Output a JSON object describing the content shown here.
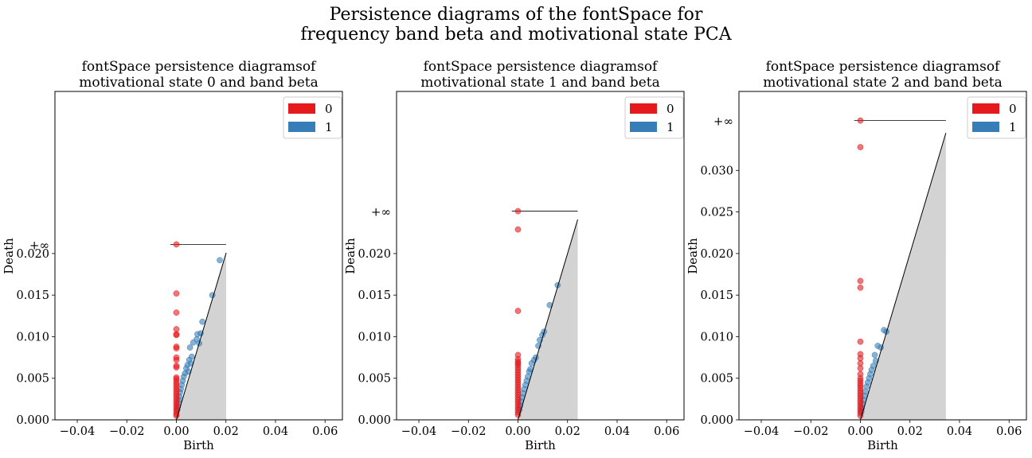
{
  "figure": {
    "suptitle_line1": "Persistence diagrams of the fontSpace for",
    "suptitle_line2": "frequency band beta and motivational state PCA",
    "colors": {
      "h0": "#e41a1c",
      "h1": "#377eb8",
      "fill": "#d3d3d3"
    }
  },
  "chart_data": [
    {
      "type": "scatter",
      "title_line1": "fontSpace persistence diagramsof",
      "title_line2": "motivational state 0 and band beta",
      "xlabel": "Birth",
      "ylabel": "Death",
      "infinity_label": "+∞",
      "infinity_death": 0.0211,
      "xlim": [
        -0.049,
        0.067
      ],
      "ylim": [
        0,
        0.0395
      ],
      "diagonal_max": 0.0201,
      "xticks": [
        -0.04,
        -0.02,
        0.0,
        0.02,
        0.04,
        0.06
      ],
      "xtick_labels": [
        "−0.04",
        "−0.02",
        "0.00",
        "0.02",
        "0.04",
        "0.06"
      ],
      "yticks": [
        0.0,
        0.005,
        0.01,
        0.015,
        0.02
      ],
      "ytick_labels": [
        "0.000",
        "0.005",
        "0.010",
        "0.015",
        "0.020"
      ],
      "legend": [
        "0",
        "1"
      ],
      "legend_position": "upper right",
      "series": [
        {
          "name": "0",
          "points": [
            [
              0,
              0.0211
            ],
            [
              0,
              0.0152
            ],
            [
              0,
              0.0129
            ],
            [
              0,
              0.0109
            ],
            [
              0,
              0.0103
            ],
            [
              0,
              0.0102
            ],
            [
              0,
              0.0088
            ],
            [
              0,
              0.0086
            ],
            [
              0,
              0.0075
            ],
            [
              0,
              0.0072
            ],
            [
              0,
              0.0065
            ],
            [
              0,
              0.0063
            ],
            [
              0,
              0.0051
            ],
            [
              0,
              0.0049
            ],
            [
              0,
              0.0046
            ],
            [
              0,
              0.0043
            ],
            [
              0,
              0.004
            ],
            [
              0,
              0.0037
            ],
            [
              0,
              0.0034
            ],
            [
              0,
              0.0031
            ],
            [
              0,
              0.0028
            ],
            [
              0,
              0.0025
            ],
            [
              0,
              0.0022
            ],
            [
              0,
              0.0019
            ],
            [
              0,
              0.0016
            ],
            [
              0,
              0.0013
            ],
            [
              0,
              0.001
            ],
            [
              0,
              0.0007
            ],
            [
              0,
              0.0005
            ]
          ]
        },
        {
          "name": "1",
          "points": [
            [
              0.0175,
              0.0192
            ],
            [
              0.0145,
              0.015
            ],
            [
              0.0105,
              0.0118
            ],
            [
              0.0085,
              0.0103
            ],
            [
              0.0098,
              0.0104
            ],
            [
              0.0068,
              0.0093
            ],
            [
              0.0082,
              0.0097
            ],
            [
              0.0092,
              0.0092
            ],
            [
              0.0055,
              0.0087
            ],
            [
              0.0062,
              0.0076
            ],
            [
              0.0052,
              0.0072
            ],
            [
              0.0058,
              0.0068
            ],
            [
              0.0045,
              0.0066
            ],
            [
              0.004,
              0.0062
            ],
            [
              0.0048,
              0.0058
            ],
            [
              0.0035,
              0.0056
            ],
            [
              0.003,
              0.0052
            ],
            [
              0.0026,
              0.0047
            ],
            [
              0.0022,
              0.0042
            ],
            [
              0.0018,
              0.0037
            ],
            [
              0.0015,
              0.0033
            ],
            [
              0.0012,
              0.0028
            ],
            [
              0.001,
              0.0024
            ],
            [
              0.0008,
              0.002
            ],
            [
              0.0006,
              0.0016
            ],
            [
              0.0004,
              0.0012
            ]
          ]
        }
      ]
    },
    {
      "type": "scatter",
      "title_line1": "fontSpace persistence diagramsof",
      "title_line2": "motivational state 1 and band beta",
      "xlabel": "Birth",
      "ylabel": "Death",
      "infinity_label": "+∞",
      "infinity_death": 0.0251,
      "xlim": [
        -0.049,
        0.067
      ],
      "ylim": [
        0,
        0.0395
      ],
      "diagonal_max": 0.0241,
      "xticks": [
        -0.04,
        -0.02,
        0.0,
        0.02,
        0.04,
        0.06
      ],
      "xtick_labels": [
        "−0.04",
        "−0.02",
        "0.00",
        "0.02",
        "0.04",
        "0.06"
      ],
      "yticks": [
        0.0,
        0.005,
        0.01,
        0.015,
        0.02
      ],
      "ytick_labels": [
        "0.000",
        "0.005",
        "0.010",
        "0.015",
        "0.020"
      ],
      "legend": [
        "0",
        "1"
      ],
      "legend_position": "upper right",
      "series": [
        {
          "name": "0",
          "points": [
            [
              0,
              0.0251
            ],
            [
              0,
              0.0229
            ],
            [
              0,
              0.0131
            ],
            [
              0,
              0.0078
            ],
            [
              0,
              0.0073
            ],
            [
              0,
              0.007
            ],
            [
              0,
              0.0068
            ],
            [
              0,
              0.0066
            ],
            [
              0,
              0.0063
            ],
            [
              0,
              0.006
            ],
            [
              0,
              0.0057
            ],
            [
              0,
              0.0054
            ],
            [
              0,
              0.0051
            ],
            [
              0,
              0.0048
            ],
            [
              0,
              0.0045
            ],
            [
              0,
              0.0042
            ],
            [
              0,
              0.0039
            ],
            [
              0,
              0.0036
            ],
            [
              0,
              0.0033
            ],
            [
              0,
              0.003
            ],
            [
              0,
              0.0027
            ],
            [
              0,
              0.0024
            ],
            [
              0,
              0.0021
            ],
            [
              0,
              0.0018
            ],
            [
              0,
              0.0015
            ],
            [
              0,
              0.0012
            ],
            [
              0,
              0.0009
            ],
            [
              0,
              0.0006
            ]
          ]
        },
        {
          "name": "1",
          "points": [
            [
              0.016,
              0.0162
            ],
            [
              0.0128,
              0.0138
            ],
            [
              0.0105,
              0.0106
            ],
            [
              0.0098,
              0.0102
            ],
            [
              0.0088,
              0.0096
            ],
            [
              0.0082,
              0.0089
            ],
            [
              0.0072,
              0.0075
            ],
            [
              0.0065,
              0.0072
            ],
            [
              0.0055,
              0.0068
            ],
            [
              0.005,
              0.0061
            ],
            [
              0.0045,
              0.0058
            ],
            [
              0.004,
              0.0052
            ],
            [
              0.0035,
              0.0047
            ],
            [
              0.003,
              0.0042
            ],
            [
              0.0025,
              0.0037
            ],
            [
              0.002,
              0.0032
            ],
            [
              0.0016,
              0.0027
            ],
            [
              0.0012,
              0.0022
            ],
            [
              0.0009,
              0.0017
            ],
            [
              0.0006,
              0.0012
            ]
          ]
        }
      ]
    },
    {
      "type": "scatter",
      "title_line1": "fontSpace persistence diagramsof",
      "title_line2": "motivational state 2 and band beta",
      "xlabel": "Birth",
      "ylabel": "Death",
      "infinity_label": "+∞",
      "infinity_death": 0.036,
      "xlim": [
        -0.049,
        0.067
      ],
      "ylim": [
        0,
        0.0395
      ],
      "diagonal_max": 0.0345,
      "xticks": [
        -0.04,
        -0.02,
        0.0,
        0.02,
        0.04,
        0.06
      ],
      "xtick_labels": [
        "−0.04",
        "−0.02",
        "0.00",
        "0.02",
        "0.04",
        "0.06"
      ],
      "yticks": [
        0.0,
        0.005,
        0.01,
        0.015,
        0.02,
        0.025,
        0.03
      ],
      "ytick_labels": [
        "0.000",
        "0.005",
        "0.010",
        "0.015",
        "0.020",
        "0.025",
        "0.030"
      ],
      "legend": [
        "0",
        "1"
      ],
      "legend_position": "upper right",
      "series": [
        {
          "name": "0",
          "points": [
            [
              0,
              0.036
            ],
            [
              0,
              0.0328
            ],
            [
              0,
              0.0167
            ],
            [
              0,
              0.0159
            ],
            [
              0,
              0.0094
            ],
            [
              0,
              0.0079
            ],
            [
              0,
              0.0074
            ],
            [
              0,
              0.0068
            ],
            [
              0,
              0.0062
            ],
            [
              0,
              0.0055
            ],
            [
              0,
              0.005
            ],
            [
              0,
              0.0047
            ],
            [
              0,
              0.0044
            ],
            [
              0,
              0.0041
            ],
            [
              0,
              0.0038
            ],
            [
              0,
              0.0035
            ],
            [
              0,
              0.0032
            ],
            [
              0,
              0.0029
            ],
            [
              0,
              0.0026
            ],
            [
              0,
              0.0023
            ],
            [
              0,
              0.002
            ],
            [
              0,
              0.0017
            ],
            [
              0,
              0.0014
            ],
            [
              0,
              0.0011
            ],
            [
              0,
              0.0008
            ],
            [
              0,
              0.0005
            ]
          ]
        },
        {
          "name": "1",
          "points": [
            [
              0.0095,
              0.0108
            ],
            [
              0.0105,
              0.0106
            ],
            [
              0.007,
              0.0089
            ],
            [
              0.0082,
              0.0087
            ],
            [
              0.0058,
              0.0078
            ],
            [
              0.0062,
              0.0071
            ],
            [
              0.0052,
              0.0065
            ],
            [
              0.0045,
              0.006
            ],
            [
              0.004,
              0.0055
            ],
            [
              0.0035,
              0.005
            ],
            [
              0.003,
              0.0045
            ],
            [
              0.0025,
              0.004
            ],
            [
              0.002,
              0.0034
            ],
            [
              0.0016,
              0.0029
            ],
            [
              0.0012,
              0.0024
            ],
            [
              0.0009,
              0.0019
            ],
            [
              0.0006,
              0.0014
            ],
            [
              0.0004,
              0.001
            ]
          ]
        }
      ]
    }
  ]
}
